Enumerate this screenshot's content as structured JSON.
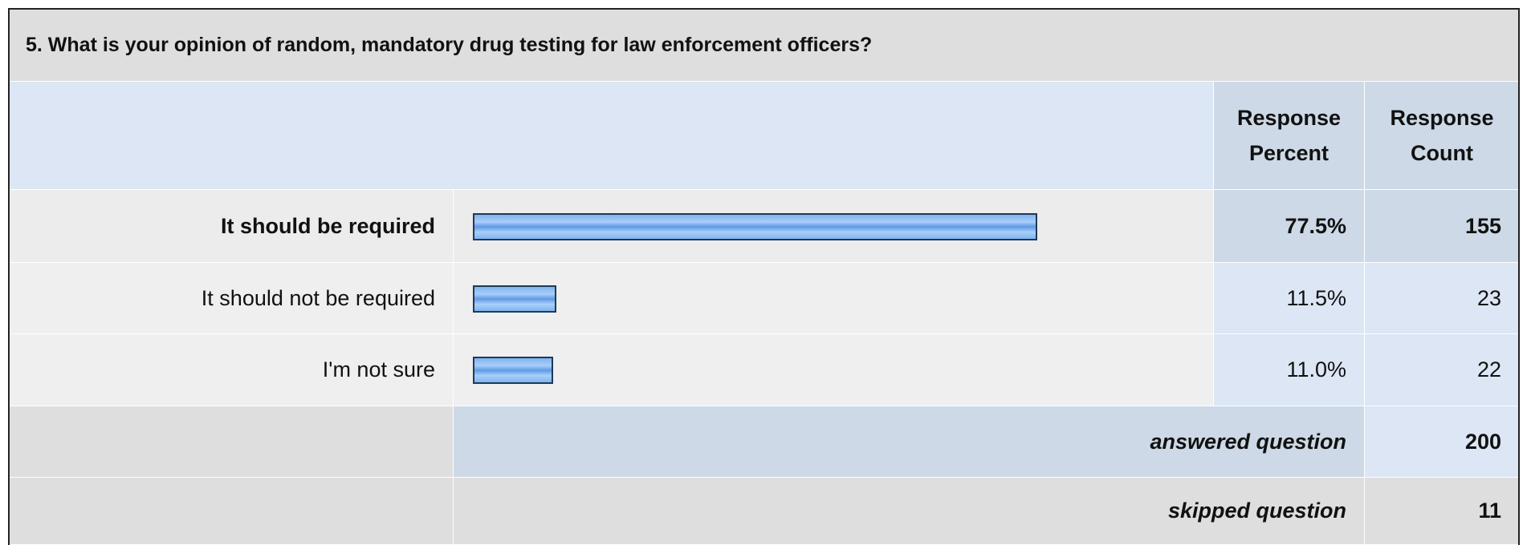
{
  "question": "5. What is your opinion of random, mandatory drug testing for law enforcement officers?",
  "headers": [
    "Response Percent",
    "Response Count"
  ],
  "rows": [
    {
      "label": "It should be required",
      "percent": 77.5,
      "percent_label": "77.5%",
      "count": 155
    },
    {
      "label": "It should not be required",
      "percent": 11.5,
      "percent_label": "11.5%",
      "count": 23
    },
    {
      "label": "I'm not sure",
      "percent": 11.0,
      "percent_label": "11.0%",
      "count": 22
    }
  ],
  "answered": {
    "label": "answered question",
    "count": 200
  },
  "skipped": {
    "label": "skipped question",
    "count": 11
  }
}
